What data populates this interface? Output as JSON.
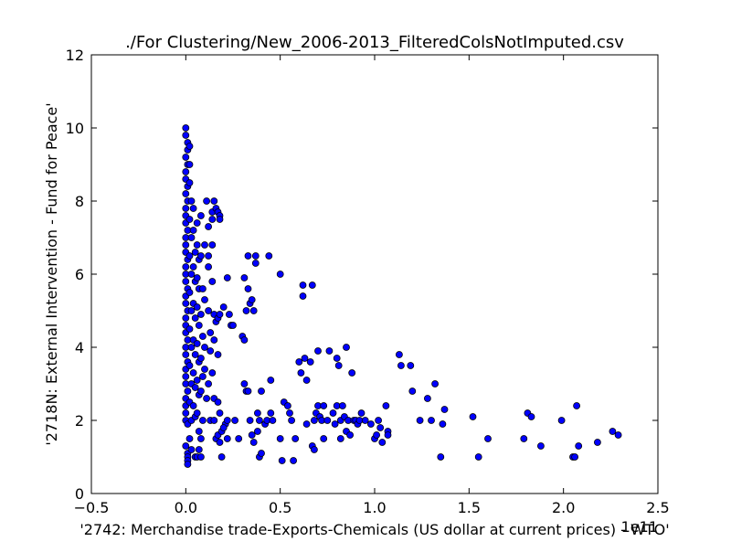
{
  "chart_data": {
    "type": "scatter",
    "title": "./For Clustering/New_2006-2013_FilteredColsNotImputed.csv",
    "xlabel": "'2742: Merchandise trade-Exports-Chemicals (US dollar at current prices) - WTO'",
    "ylabel": "'2718N: External Intervention - Fund for Peace'",
    "x_offset_label": "1e11",
    "xlim": [
      -0.5,
      2.5
    ],
    "ylim": [
      0,
      12
    ],
    "x_ticks": [
      "−0.5",
      "0.0",
      "0.5",
      "1.0",
      "1.5",
      "2.0",
      "2.5"
    ],
    "x_tick_values": [
      -0.5,
      0.0,
      0.5,
      1.0,
      1.5,
      2.0,
      2.5
    ],
    "y_ticks": [
      "0",
      "2",
      "4",
      "6",
      "8",
      "10",
      "12"
    ],
    "y_tick_values": [
      0,
      2,
      4,
      6,
      8,
      10,
      12
    ],
    "grid": false,
    "marker_color": "#0000ff",
    "x_scale_note": "x values in units of 1e11",
    "points": [
      [
        0.0,
        10.0
      ],
      [
        0.0,
        9.8
      ],
      [
        0.01,
        9.6
      ],
      [
        0.01,
        9.4
      ],
      [
        0.0,
        9.2
      ],
      [
        0.01,
        9.0
      ],
      [
        0.0,
        8.8
      ],
      [
        0.0,
        8.6
      ],
      [
        0.01,
        8.4
      ],
      [
        0.0,
        8.2
      ],
      [
        0.01,
        8.0
      ],
      [
        0.0,
        7.8
      ],
      [
        0.0,
        7.6
      ],
      [
        0.0,
        7.4
      ],
      [
        0.01,
        7.2
      ],
      [
        0.0,
        7.0
      ],
      [
        0.0,
        6.8
      ],
      [
        0.0,
        6.6
      ],
      [
        0.01,
        6.4
      ],
      [
        0.0,
        6.2
      ],
      [
        0.0,
        6.0
      ],
      [
        0.0,
        5.8
      ],
      [
        0.01,
        5.6
      ],
      [
        0.0,
        5.4
      ],
      [
        0.0,
        5.2
      ],
      [
        0.01,
        5.0
      ],
      [
        0.0,
        4.8
      ],
      [
        0.0,
        4.6
      ],
      [
        0.0,
        4.4
      ],
      [
        0.01,
        4.2
      ],
      [
        0.0,
        4.0
      ],
      [
        0.0,
        3.8
      ],
      [
        0.01,
        3.6
      ],
      [
        0.0,
        3.4
      ],
      [
        0.0,
        3.2
      ],
      [
        0.0,
        3.0
      ],
      [
        0.01,
        2.8
      ],
      [
        0.0,
        2.6
      ],
      [
        0.0,
        2.4
      ],
      [
        0.0,
        2.2
      ],
      [
        0.0,
        2.0
      ],
      [
        0.01,
        1.9
      ],
      [
        0.0,
        1.3
      ],
      [
        0.01,
        1.1
      ],
      [
        0.01,
        1.0
      ],
      [
        0.01,
        0.9
      ],
      [
        0.01,
        0.8
      ],
      [
        0.02,
        9.5
      ],
      [
        0.02,
        9.0
      ],
      [
        0.02,
        8.5
      ],
      [
        0.03,
        8.0
      ],
      [
        0.02,
        7.5
      ],
      [
        0.03,
        7.0
      ],
      [
        0.02,
        6.5
      ],
      [
        0.03,
        6.0
      ],
      [
        0.02,
        5.5
      ],
      [
        0.03,
        5.0
      ],
      [
        0.02,
        4.5
      ],
      [
        0.03,
        4.0
      ],
      [
        0.02,
        3.5
      ],
      [
        0.03,
        3.0
      ],
      [
        0.02,
        2.5
      ],
      [
        0.03,
        2.0
      ],
      [
        0.02,
        1.5
      ],
      [
        0.03,
        1.2
      ],
      [
        0.04,
        7.8
      ],
      [
        0.04,
        7.2
      ],
      [
        0.05,
        6.6
      ],
      [
        0.04,
        6.2
      ],
      [
        0.05,
        5.8
      ],
      [
        0.04,
        5.2
      ],
      [
        0.05,
        4.8
      ],
      [
        0.04,
        4.2
      ],
      [
        0.05,
        3.8
      ],
      [
        0.04,
        3.3
      ],
      [
        0.05,
        2.9
      ],
      [
        0.04,
        2.4
      ],
      [
        0.05,
        2.1
      ],
      [
        0.05,
        1.0
      ],
      [
        0.06,
        7.4
      ],
      [
        0.06,
        6.8
      ],
      [
        0.07,
        6.4
      ],
      [
        0.06,
        5.9
      ],
      [
        0.07,
        5.6
      ],
      [
        0.06,
        5.1
      ],
      [
        0.07,
        4.6
      ],
      [
        0.06,
        4.1
      ],
      [
        0.07,
        3.6
      ],
      [
        0.06,
        3.1
      ],
      [
        0.07,
        2.7
      ],
      [
        0.06,
        2.2
      ],
      [
        0.07,
        1.7
      ],
      [
        0.08,
        7.6
      ],
      [
        0.08,
        6.5
      ],
      [
        0.09,
        5.6
      ],
      [
        0.08,
        4.9
      ],
      [
        0.09,
        4.3
      ],
      [
        0.08,
        3.7
      ],
      [
        0.09,
        3.2
      ],
      [
        0.08,
        2.8
      ],
      [
        0.09,
        2.0
      ],
      [
        0.08,
        1.5
      ],
      [
        0.07,
        1.2
      ],
      [
        0.06,
        1.0
      ],
      [
        0.08,
        1.0
      ],
      [
        0.1,
        6.8
      ],
      [
        0.1,
        5.3
      ],
      [
        0.1,
        4.0
      ],
      [
        0.1,
        3.4
      ],
      [
        0.11,
        2.6
      ],
      [
        0.11,
        8.0
      ],
      [
        0.12,
        7.3
      ],
      [
        0.12,
        6.2
      ],
      [
        0.12,
        5.0
      ],
      [
        0.13,
        4.4
      ],
      [
        0.13,
        3.9
      ],
      [
        0.12,
        3.0
      ],
      [
        0.13,
        2.0
      ],
      [
        0.12,
        6.5
      ],
      [
        0.14,
        6.8
      ],
      [
        0.14,
        5.8
      ],
      [
        0.15,
        4.9
      ],
      [
        0.15,
        4.2
      ],
      [
        0.14,
        3.3
      ],
      [
        0.15,
        2.6
      ],
      [
        0.15,
        2.0
      ],
      [
        0.14,
        7.7
      ],
      [
        0.14,
        7.5
      ],
      [
        0.15,
        8.0
      ],
      [
        0.16,
        7.8
      ],
      [
        0.17,
        7.7
      ],
      [
        0.18,
        7.6
      ],
      [
        0.18,
        7.5
      ],
      [
        0.16,
        4.7
      ],
      [
        0.17,
        4.8
      ],
      [
        0.18,
        4.9
      ],
      [
        0.17,
        3.8
      ],
      [
        0.17,
        2.5
      ],
      [
        0.18,
        2.2
      ],
      [
        0.16,
        1.5
      ],
      [
        0.17,
        1.6
      ],
      [
        0.19,
        1.7
      ],
      [
        0.18,
        1.4
      ],
      [
        0.19,
        1.0
      ],
      [
        0.2,
        5.1
      ],
      [
        0.21,
        1.9
      ],
      [
        0.22,
        2.0
      ],
      [
        0.2,
        1.8
      ],
      [
        0.22,
        5.9
      ],
      [
        0.23,
        4.9
      ],
      [
        0.24,
        4.6
      ],
      [
        0.25,
        4.6
      ],
      [
        0.26,
        2.0
      ],
      [
        0.22,
        1.5
      ],
      [
        0.28,
        1.5
      ],
      [
        0.3,
        4.3
      ],
      [
        0.31,
        4.2
      ],
      [
        0.31,
        3.0
      ],
      [
        0.32,
        2.8
      ],
      [
        0.33,
        2.8
      ],
      [
        0.34,
        2.0
      ],
      [
        0.31,
        5.9
      ],
      [
        0.32,
        5.0
      ],
      [
        0.33,
        5.6
      ],
      [
        0.34,
        5.2
      ],
      [
        0.35,
        5.3
      ],
      [
        0.36,
        5.0
      ],
      [
        0.33,
        6.5
      ],
      [
        0.37,
        6.3
      ],
      [
        0.37,
        6.5
      ],
      [
        0.38,
        2.2
      ],
      [
        0.39,
        2.0
      ],
      [
        0.35,
        1.6
      ],
      [
        0.36,
        1.4
      ],
      [
        0.38,
        1.7
      ],
      [
        0.39,
        1.0
      ],
      [
        0.4,
        2.8
      ],
      [
        0.4,
        1.1
      ],
      [
        0.42,
        1.9
      ],
      [
        0.43,
        2.0
      ],
      [
        0.44,
        6.5
      ],
      [
        0.45,
        3.1
      ],
      [
        0.45,
        2.2
      ],
      [
        0.46,
        2.0
      ],
      [
        0.5,
        6.0
      ],
      [
        0.5,
        1.5
      ],
      [
        0.51,
        0.9
      ],
      [
        0.52,
        2.5
      ],
      [
        0.54,
        2.4
      ],
      [
        0.55,
        2.2
      ],
      [
        0.56,
        2.0
      ],
      [
        0.57,
        0.9
      ],
      [
        0.58,
        1.5
      ],
      [
        0.6,
        3.6
      ],
      [
        0.61,
        3.3
      ],
      [
        0.62,
        5.4
      ],
      [
        0.62,
        5.7
      ],
      [
        0.63,
        3.7
      ],
      [
        0.64,
        3.1
      ],
      [
        0.64,
        1.9
      ],
      [
        0.66,
        3.6
      ],
      [
        0.67,
        5.7
      ],
      [
        0.67,
        1.3
      ],
      [
        0.68,
        1.2
      ],
      [
        0.68,
        2.0
      ],
      [
        0.69,
        2.2
      ],
      [
        0.7,
        3.9
      ],
      [
        0.7,
        2.4
      ],
      [
        0.71,
        2.1
      ],
      [
        0.72,
        2.0
      ],
      [
        0.73,
        2.4
      ],
      [
        0.73,
        1.5
      ],
      [
        0.75,
        2.0
      ],
      [
        0.76,
        3.9
      ],
      [
        0.78,
        2.2
      ],
      [
        0.79,
        1.9
      ],
      [
        0.8,
        2.4
      ],
      [
        0.8,
        3.7
      ],
      [
        0.81,
        3.5
      ],
      [
        0.82,
        2.0
      ],
      [
        0.82,
        1.5
      ],
      [
        0.83,
        2.4
      ],
      [
        0.84,
        2.1
      ],
      [
        0.85,
        1.7
      ],
      [
        0.85,
        4.0
      ],
      [
        0.86,
        2.0
      ],
      [
        0.87,
        1.6
      ],
      [
        0.88,
        3.3
      ],
      [
        0.89,
        2.0
      ],
      [
        0.9,
        2.0
      ],
      [
        0.91,
        1.9
      ],
      [
        0.92,
        2.0
      ],
      [
        0.93,
        2.2
      ],
      [
        0.95,
        2.0
      ],
      [
        0.98,
        1.9
      ],
      [
        1.0,
        1.5
      ],
      [
        1.01,
        1.6
      ],
      [
        1.02,
        2.0
      ],
      [
        1.03,
        1.8
      ],
      [
        1.04,
        1.4
      ],
      [
        1.06,
        2.4
      ],
      [
        1.07,
        1.7
      ],
      [
        1.07,
        1.6
      ],
      [
        1.13,
        3.8
      ],
      [
        1.14,
        3.5
      ],
      [
        1.19,
        3.5
      ],
      [
        1.2,
        2.8
      ],
      [
        1.24,
        2.0
      ],
      [
        1.28,
        2.6
      ],
      [
        1.3,
        2.0
      ],
      [
        1.32,
        3.0
      ],
      [
        1.35,
        1.0
      ],
      [
        1.36,
        1.9
      ],
      [
        1.37,
        2.3
      ],
      [
        1.52,
        2.1
      ],
      [
        1.55,
        1.0
      ],
      [
        1.6,
        1.5
      ],
      [
        1.79,
        1.5
      ],
      [
        1.81,
        2.2
      ],
      [
        1.83,
        2.1
      ],
      [
        1.88,
        1.3
      ],
      [
        1.99,
        2.0
      ],
      [
        2.05,
        1.0
      ],
      [
        2.06,
        1.0
      ],
      [
        2.07,
        2.4
      ],
      [
        2.08,
        1.3
      ],
      [
        2.18,
        1.4
      ],
      [
        2.26,
        1.7
      ],
      [
        2.29,
        1.6
      ]
    ]
  }
}
